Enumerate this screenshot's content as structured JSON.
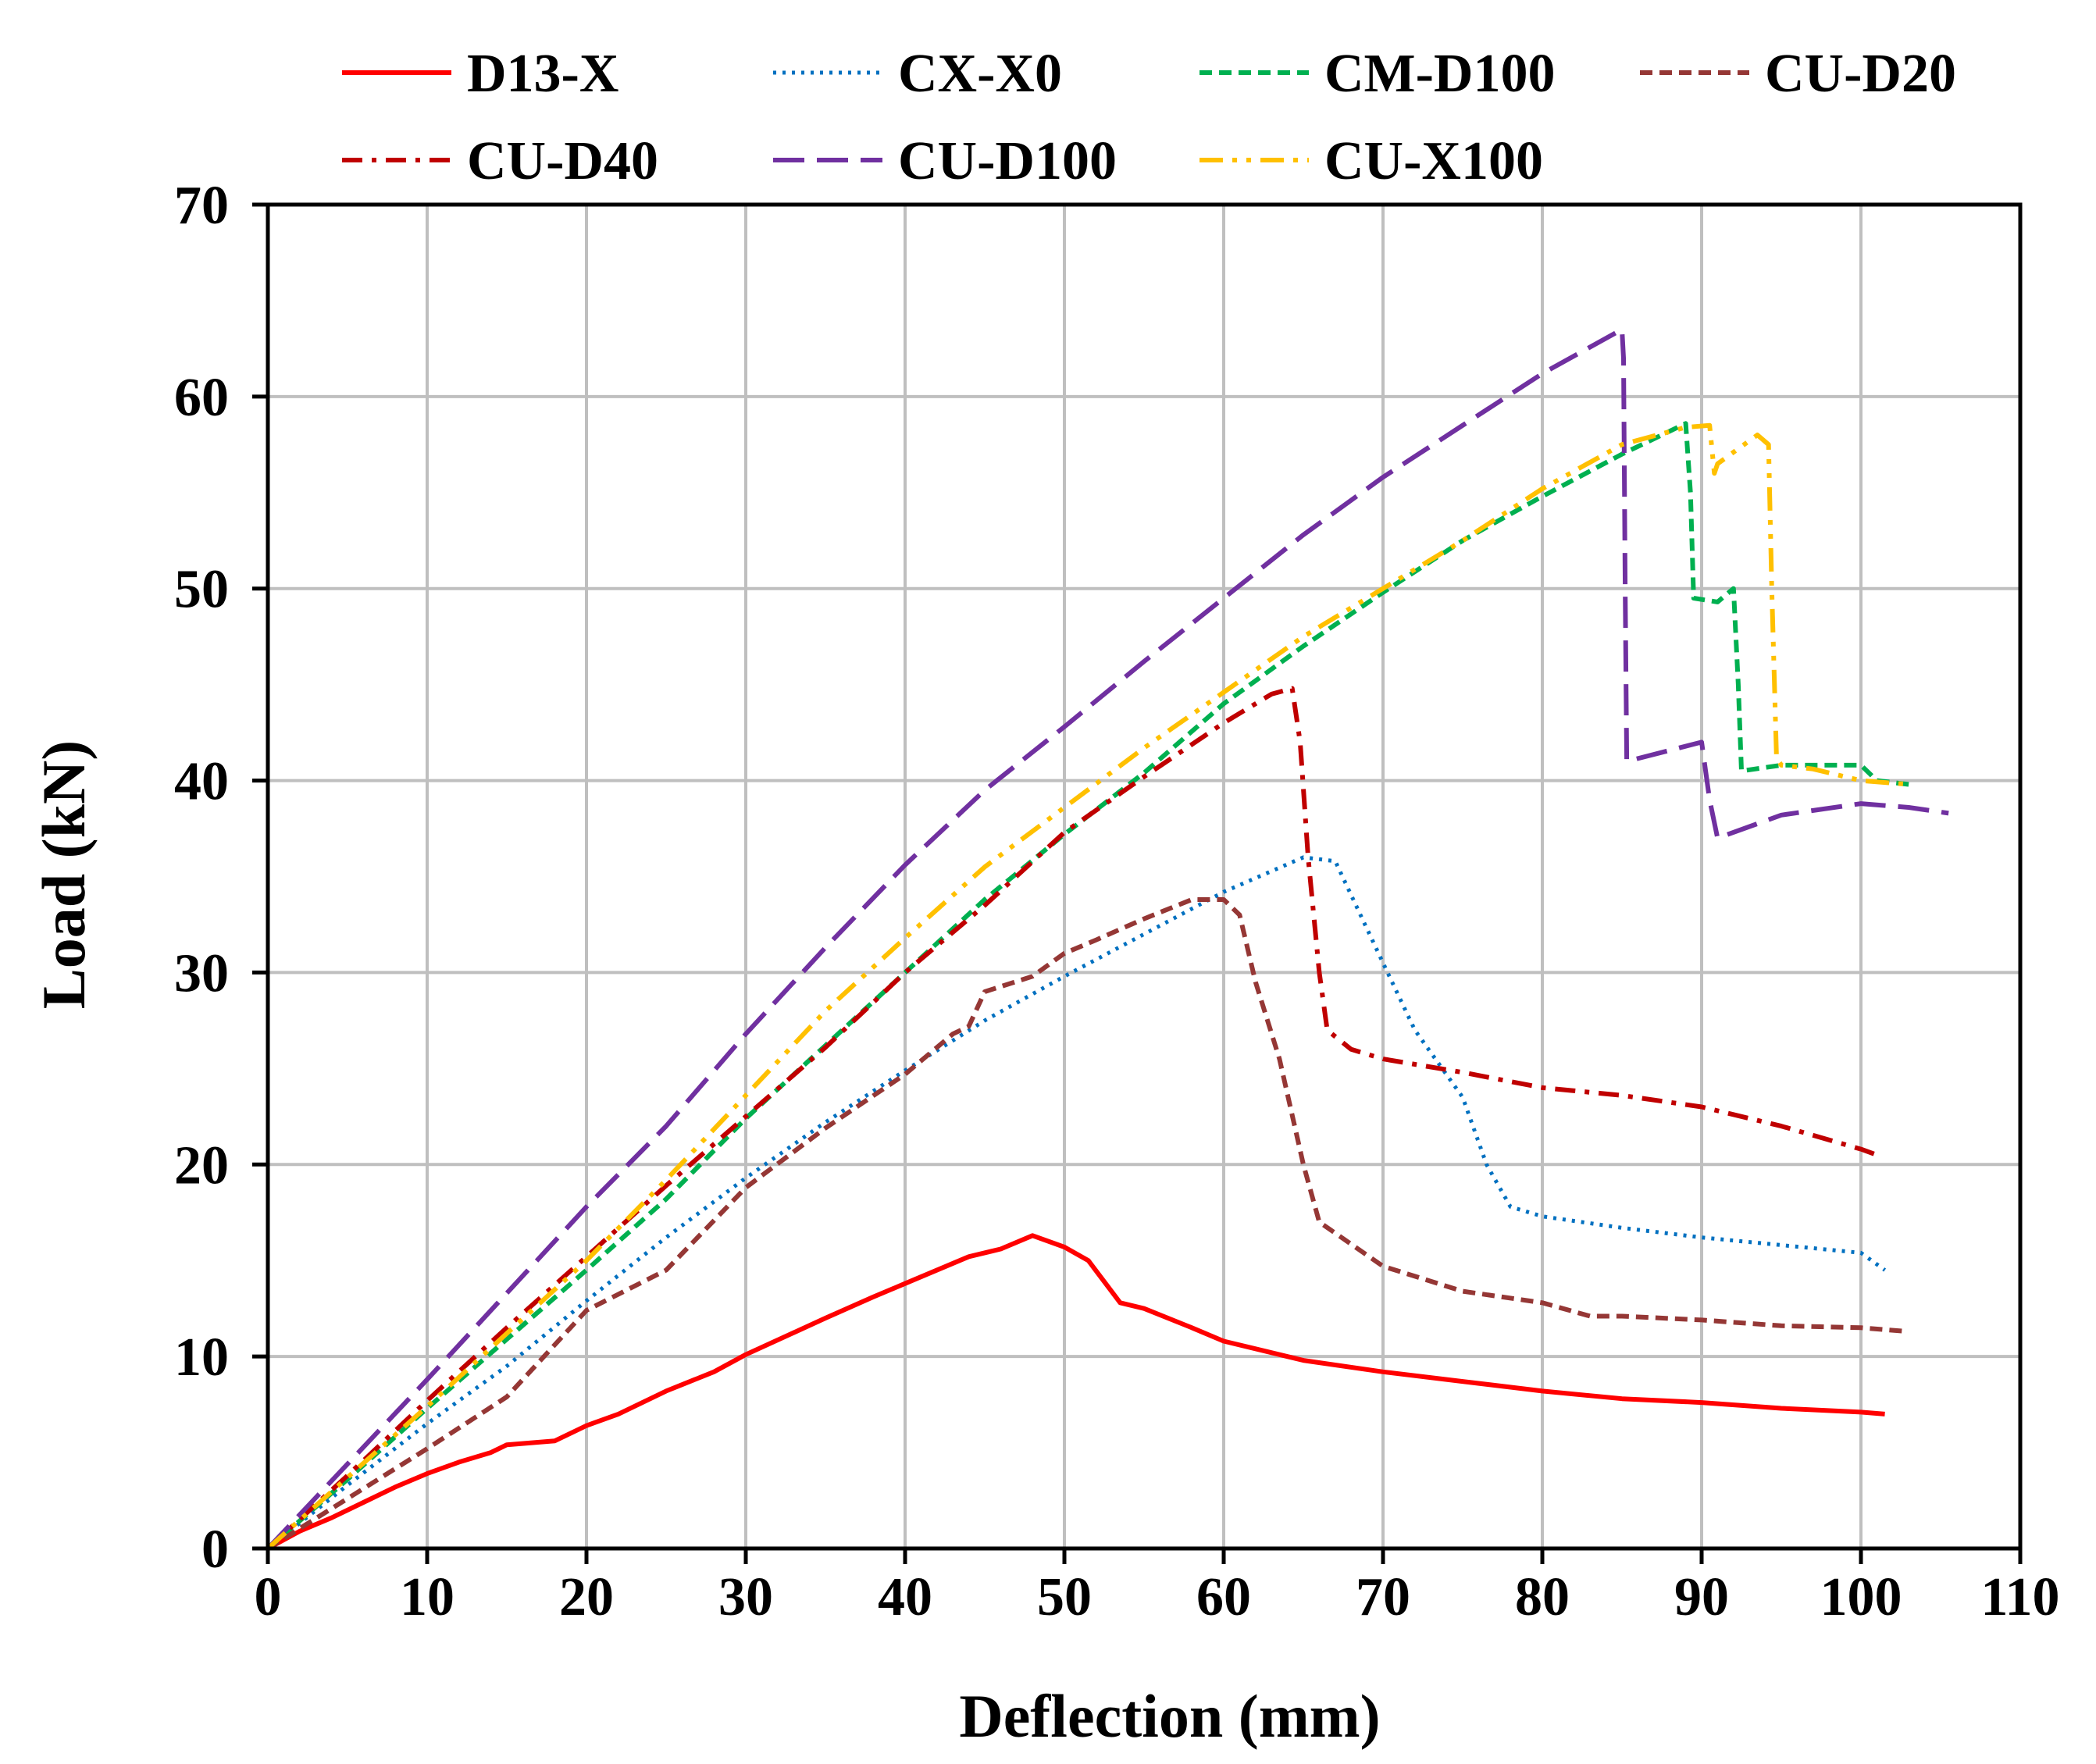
{
  "chart_data": {
    "type": "line",
    "title": "",
    "xlabel": "Deflection (mm)",
    "ylabel": "Load (kN)",
    "xlim": [
      0,
      110
    ],
    "ylim": [
      0,
      70
    ],
    "xticks": [
      0,
      10,
      20,
      30,
      40,
      50,
      60,
      70,
      80,
      90,
      100,
      110
    ],
    "yticks": [
      0,
      10,
      20,
      30,
      40,
      50,
      60,
      70
    ],
    "grid": true,
    "legend_position": "top",
    "series": [
      {
        "name": "D13-X",
        "color": "#ff0000",
        "style": "solid",
        "x": [
          0,
          2,
          4,
          6,
          8,
          10,
          12,
          14,
          15,
          18,
          20,
          22,
          25,
          28,
          30,
          35,
          38,
          40,
          44,
          46,
          48,
          50,
          51.5,
          53.5,
          55,
          58,
          60,
          62,
          65,
          70,
          75,
          80,
          85,
          90,
          95,
          100,
          101.5
        ],
        "y": [
          0,
          0.9,
          1.6,
          2.4,
          3.2,
          3.9,
          4.5,
          5.0,
          5.4,
          5.6,
          6.4,
          7.0,
          8.2,
          9.2,
          10.1,
          12.0,
          13.1,
          13.8,
          15.2,
          15.6,
          16.3,
          15.7,
          15.0,
          12.8,
          12.5,
          11.5,
          10.8,
          10.4,
          9.8,
          9.2,
          8.7,
          8.2,
          7.8,
          7.6,
          7.3,
          7.1,
          7.0
        ]
      },
      {
        "name": "CX-X0",
        "color": "#0070c0",
        "style": "dotted",
        "x": [
          0,
          5,
          10,
          15,
          20,
          25,
          30,
          35,
          40,
          45,
          50,
          55,
          60,
          65,
          67,
          70,
          72,
          75,
          76.5,
          78,
          80,
          85,
          90,
          95,
          100,
          101.5
        ],
        "y": [
          0,
          3.3,
          6.5,
          9.5,
          12.9,
          16.2,
          19.3,
          22.2,
          24.9,
          27.5,
          29.8,
          32.0,
          34.2,
          36.0,
          35.8,
          30.5,
          27.0,
          23.5,
          20.0,
          17.8,
          17.3,
          16.7,
          16.2,
          15.8,
          15.4,
          14.5
        ]
      },
      {
        "name": "CM-D100",
        "color": "#00b050",
        "style": "dashed",
        "x": [
          0,
          5,
          10,
          15,
          20,
          25,
          30,
          35,
          40,
          45,
          50,
          55,
          60,
          65,
          70,
          75,
          80,
          85,
          89,
          89.3,
          89.5,
          91,
          92,
          92.3,
          92.5,
          95,
          100,
          101,
          103
        ],
        "y": [
          0,
          3.6,
          7.3,
          10.9,
          14.5,
          18.2,
          22.4,
          26.2,
          30.0,
          33.8,
          37.2,
          40.4,
          44.0,
          47.0,
          49.8,
          52.5,
          54.8,
          57.0,
          58.6,
          55.0,
          49.5,
          49.3,
          50.0,
          45.0,
          40.5,
          40.8,
          40.8,
          40.0,
          39.8
        ]
      },
      {
        "name": "CU-D20",
        "color": "#953735",
        "style": "dashed",
        "x": [
          0,
          5,
          10,
          15,
          20,
          25,
          30,
          35,
          40,
          43,
          44,
          45,
          48,
          50,
          52,
          55,
          58,
          60,
          61,
          62,
          63.5,
          65,
          66,
          70,
          75,
          80,
          83,
          85,
          90,
          95,
          100,
          103
        ],
        "y": [
          0,
          2.6,
          5.2,
          7.9,
          12.4,
          14.5,
          18.8,
          21.9,
          24.7,
          26.8,
          27.2,
          29.0,
          29.8,
          31.0,
          31.7,
          32.8,
          33.8,
          33.8,
          33.0,
          29.5,
          25.5,
          20.0,
          17.0,
          14.7,
          13.4,
          12.8,
          12.1,
          12.1,
          11.9,
          11.6,
          11.5,
          11.3
        ]
      },
      {
        "name": "CU-D40",
        "color": "#c00000",
        "style": "dashdot",
        "x": [
          0,
          5,
          10,
          15,
          20,
          25,
          30,
          35,
          40,
          45,
          50,
          55,
          60,
          63,
          64.3,
          64.8,
          65.3,
          66,
          66.5,
          68,
          70,
          75,
          80,
          85,
          90,
          95,
          100,
          101
        ],
        "y": [
          0,
          3.8,
          7.7,
          11.5,
          15.2,
          18.9,
          22.5,
          26.1,
          30.0,
          33.5,
          37.3,
          40.2,
          43.0,
          44.5,
          44.8,
          42.0,
          36.0,
          30.0,
          27.0,
          26.0,
          25.5,
          24.8,
          24.0,
          23.6,
          23.0,
          22.0,
          20.8,
          20.5
        ]
      },
      {
        "name": "CU-D100",
        "color": "#7030a0",
        "style": "longdash",
        "x": [
          0,
          5,
          10,
          15,
          20,
          25,
          30,
          35,
          40,
          45,
          50,
          55,
          60,
          65,
          70,
          75,
          80,
          85,
          85.1,
          85.2,
          85.3,
          90,
          90.5,
          91,
          95,
          100,
          103,
          105.5
        ],
        "y": [
          0,
          4.4,
          8.8,
          13.3,
          17.8,
          22.0,
          26.8,
          31.3,
          35.6,
          39.5,
          42.8,
          46.2,
          49.5,
          52.8,
          55.8,
          58.5,
          61.2,
          63.5,
          62.0,
          50.0,
          41.0,
          42.0,
          39.0,
          37.0,
          38.2,
          38.8,
          38.6,
          38.3
        ]
      },
      {
        "name": "CU-X100",
        "color": "#ffc000",
        "style": "dashdotdot",
        "x": [
          0,
          5,
          10,
          15,
          20,
          25,
          30,
          35,
          40,
          45,
          50,
          55,
          60,
          65,
          70,
          75,
          80,
          85,
          89,
          90.5,
          90.8,
          91,
          93.5,
          94.2,
          94.4,
          94.7,
          95,
          97,
          100,
          103
        ],
        "y": [
          0,
          3.7,
          7.4,
          11.2,
          15.0,
          19.2,
          23.6,
          28.0,
          31.8,
          35.5,
          38.6,
          41.7,
          44.6,
          47.5,
          50.0,
          52.5,
          55.2,
          57.5,
          58.4,
          58.5,
          56.0,
          56.5,
          58.0,
          57.5,
          50.0,
          41.2,
          40.8,
          40.6,
          40.0,
          39.8
        ]
      }
    ]
  }
}
